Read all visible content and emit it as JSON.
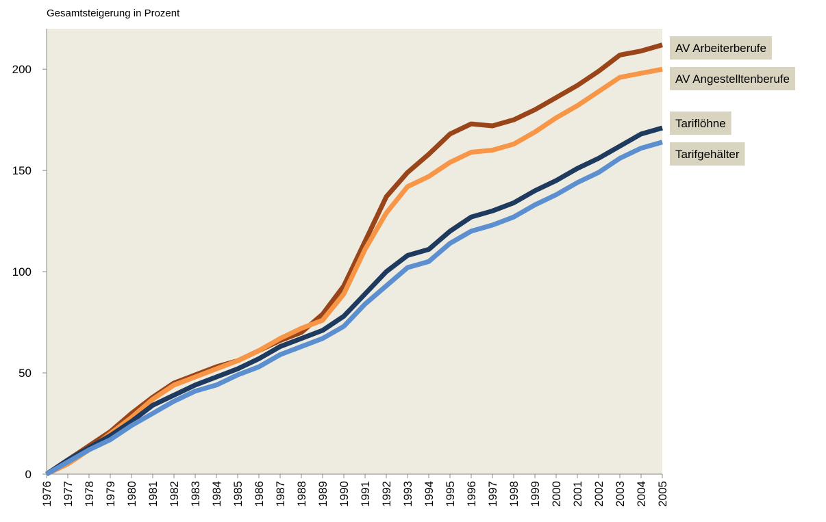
{
  "chart_data": {
    "type": "line",
    "y_axis_label": "Gesamtsteigerung in Prozent",
    "categories": [
      "1976",
      "1977",
      "1978",
      "1979",
      "1980",
      "1981",
      "1982",
      "1983",
      "1984",
      "1985",
      "1986",
      "1987",
      "1988",
      "1989",
      "1990",
      "1991",
      "1992",
      "1993",
      "1994",
      "1995",
      "1996",
      "1997",
      "1998",
      "1999",
      "2000",
      "2001",
      "2002",
      "2003",
      "2004",
      "2005"
    ],
    "series": [
      {
        "name": "AV Arbeiterberufe",
        "color": "#9a4519",
        "values": [
          0,
          7,
          14,
          21,
          30,
          38,
          45,
          49,
          53,
          56,
          61,
          66,
          70,
          79,
          93,
          115,
          137,
          149,
          158,
          168,
          173,
          172,
          175,
          180,
          186,
          192,
          199,
          207,
          209,
          212
        ]
      },
      {
        "name": "AV Angestelltenberufe",
        "color": "#f79646",
        "values": [
          0,
          5,
          12,
          20,
          28,
          37,
          44,
          48,
          52,
          56,
          61,
          67,
          72,
          76,
          89,
          111,
          129,
          142,
          147,
          154,
          159,
          160,
          163,
          169,
          176,
          182,
          189,
          196,
          198,
          200
        ]
      },
      {
        "name": "Tariflöhne",
        "color": "#1f3a5f",
        "values": [
          0,
          7,
          13,
          19,
          26,
          34,
          39,
          44,
          48,
          52,
          57,
          63,
          67,
          71,
          78,
          89,
          100,
          108,
          111,
          120,
          127,
          130,
          134,
          140,
          145,
          151,
          156,
          162,
          168,
          171
        ]
      },
      {
        "name": "Tarifgehälter",
        "color": "#5b8fcf",
        "values": [
          0,
          6,
          12,
          17,
          24,
          30,
          36,
          41,
          44,
          49,
          53,
          59,
          63,
          67,
          73,
          84,
          93,
          102,
          105,
          114,
          120,
          123,
          127,
          133,
          138,
          144,
          149,
          156,
          161,
          164
        ]
      }
    ],
    "ylim": [
      0,
      220
    ],
    "yticks": [
      0,
      50,
      100,
      150,
      200
    ],
    "grid": false,
    "plot_background": "#eeebe0",
    "legend_background": "#d9d4c0"
  }
}
